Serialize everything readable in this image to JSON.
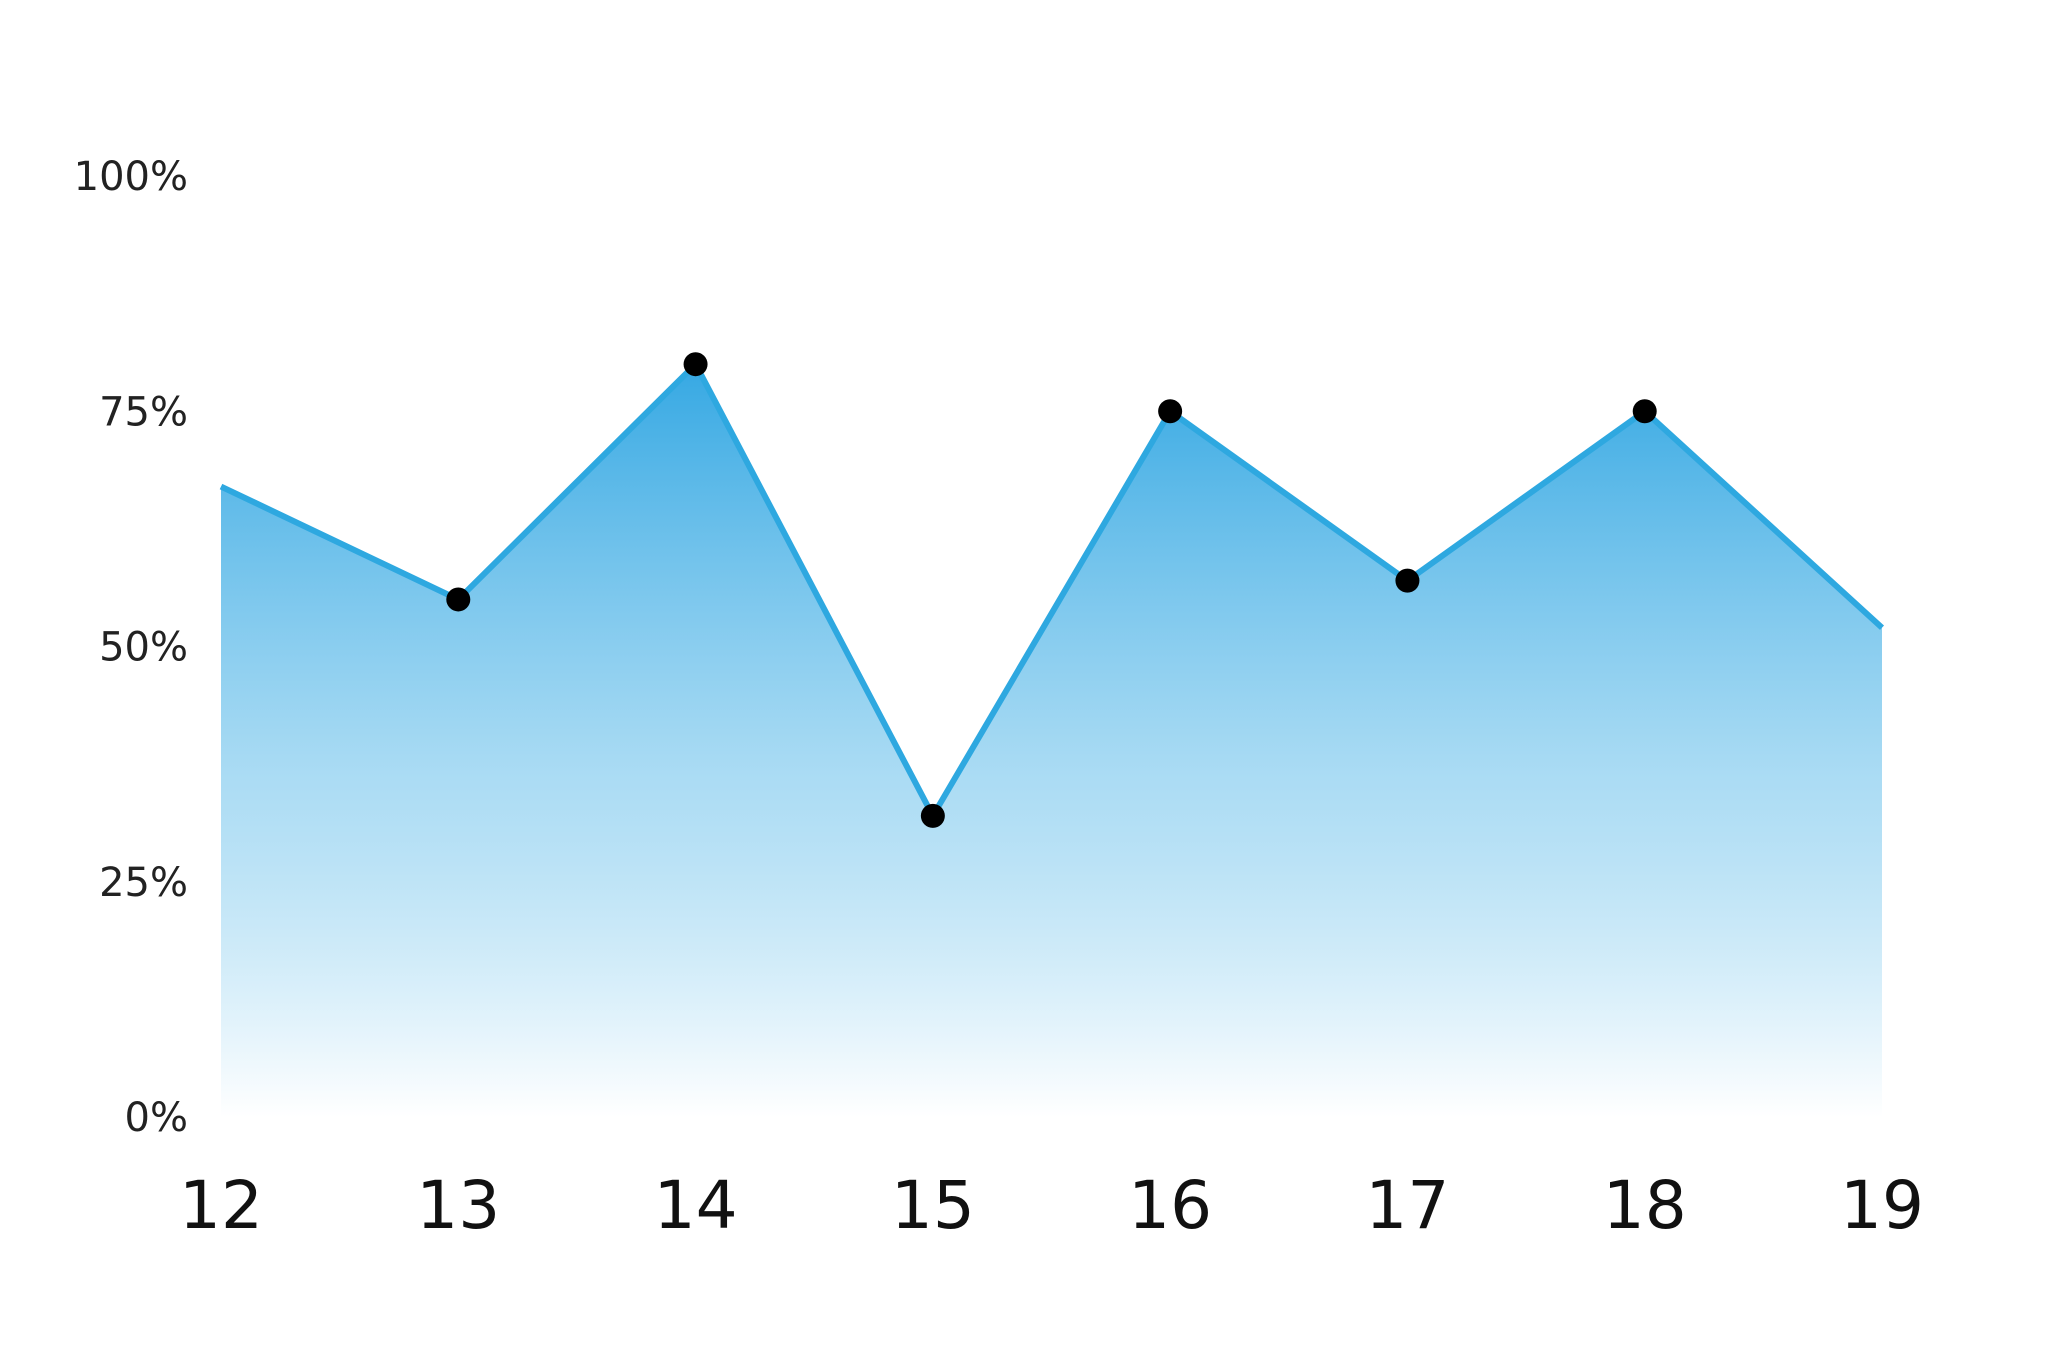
{
  "chart_data": {
    "type": "area",
    "title": "",
    "xlabel": "",
    "ylabel": "",
    "categories": [
      "12",
      "13",
      "14",
      "15",
      "16",
      "17",
      "18",
      "19"
    ],
    "x": [
      12,
      13,
      14,
      15,
      16,
      17,
      18,
      19
    ],
    "y_tick_labels": [
      "0%",
      "25%",
      "50%",
      "75%",
      "100%"
    ],
    "y_ticks": [
      0,
      25,
      50,
      75,
      100
    ],
    "ylim": [
      0,
      100
    ],
    "xlim": [
      12,
      19
    ],
    "series": [
      {
        "values": [
          67,
          55,
          80,
          32,
          75,
          57,
          75,
          52
        ],
        "markers": [
          false,
          true,
          true,
          true,
          true,
          true,
          true,
          false
        ]
      }
    ],
    "grid": "vertical",
    "legend": "none",
    "colors": {
      "line": "#2ea8e0",
      "fill_top": "#35a8e3",
      "fill_bottom": "#ffffff",
      "gridline": "#2ea8e0",
      "marker": "#000000"
    }
  }
}
